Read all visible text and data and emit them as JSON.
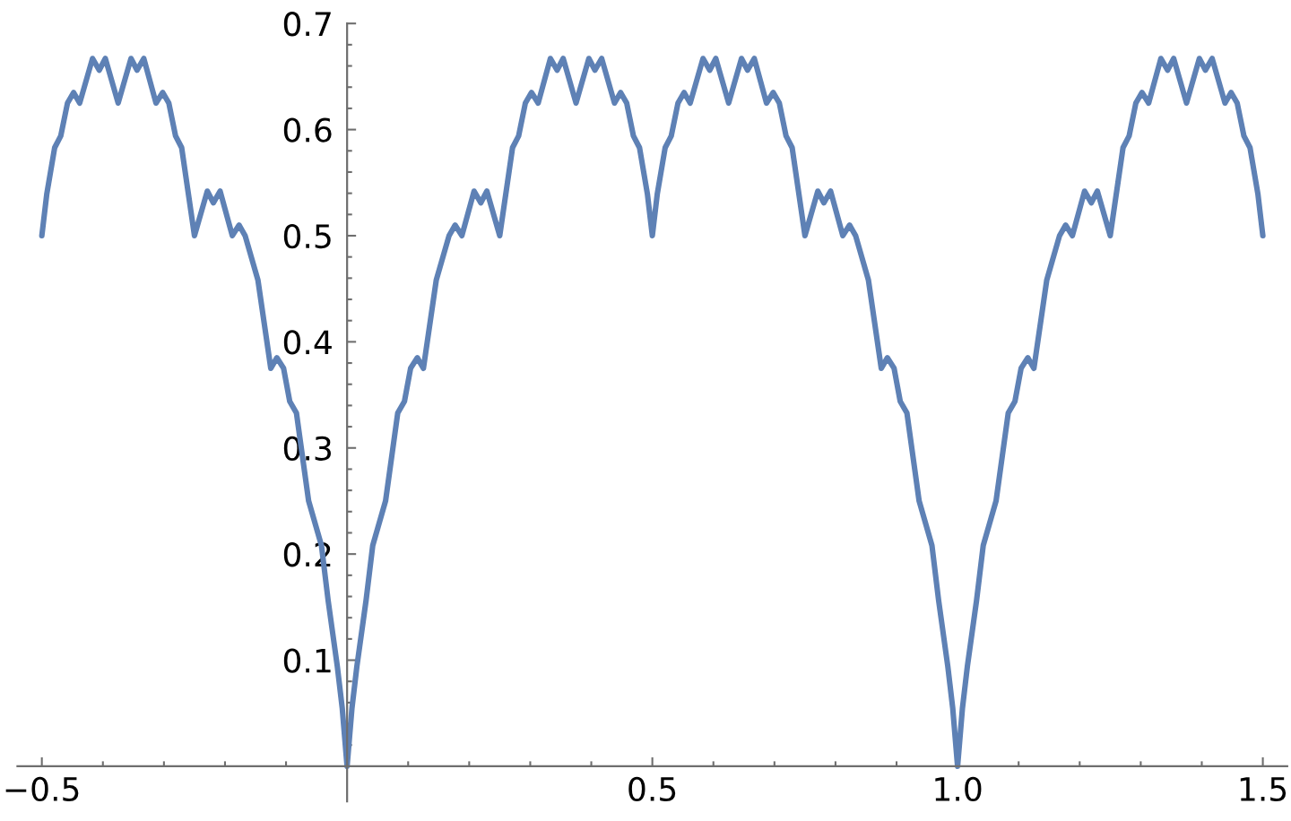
{
  "chart_data": {
    "type": "line",
    "x": [
      -0.5,
      -0.492,
      -0.479,
      -0.469,
      -0.458,
      -0.448,
      -0.438,
      -0.417,
      -0.406,
      -0.396,
      -0.375,
      -0.354,
      -0.344,
      -0.333,
      -0.313,
      -0.302,
      -0.292,
      -0.281,
      -0.271,
      -0.25,
      -0.229,
      -0.219,
      -0.208,
      -0.188,
      -0.177,
      -0.167,
      -0.146,
      -0.125,
      -0.115,
      -0.104,
      -0.094,
      -0.083,
      -0.063,
      -0.042,
      -0.031,
      -0.016,
      -0.008,
      0,
      0.008,
      0.016,
      0.031,
      0.042,
      0.063,
      0.083,
      0.094,
      0.104,
      0.115,
      0.125,
      0.146,
      0.167,
      0.177,
      0.188,
      0.208,
      0.219,
      0.229,
      0.25,
      0.271,
      0.281,
      0.292,
      0.302,
      0.313,
      0.333,
      0.344,
      0.354,
      0.375,
      0.396,
      0.406,
      0.417,
      0.438,
      0.448,
      0.458,
      0.469,
      0.479,
      0.492,
      0.5,
      0.508,
      0.521,
      0.531,
      0.542,
      0.552,
      0.562,
      0.583,
      0.594,
      0.604,
      0.625,
      0.646,
      0.656,
      0.667,
      0.687,
      0.698,
      0.708,
      0.719,
      0.729,
      0.75,
      0.771,
      0.781,
      0.792,
      0.812,
      0.823,
      0.833,
      0.854,
      0.875,
      0.885,
      0.896,
      0.906,
      0.917,
      0.937,
      0.958,
      0.969,
      0.984,
      0.992,
      1,
      1.008,
      1.016,
      1.031,
      1.042,
      1.063,
      1.083,
      1.094,
      1.104,
      1.115,
      1.125,
      1.146,
      1.167,
      1.177,
      1.188,
      1.208,
      1.219,
      1.229,
      1.25,
      1.271,
      1.281,
      1.292,
      1.302,
      1.313,
      1.333,
      1.344,
      1.354,
      1.375,
      1.396,
      1.406,
      1.417,
      1.438,
      1.448,
      1.458,
      1.469,
      1.479,
      1.492,
      1.5
    ],
    "series": [
      {
        "color": "#5e81b5",
        "values": [
          0.5,
          0.539,
          0.583,
          0.594,
          0.625,
          0.635,
          0.625,
          0.667,
          0.656,
          0.667,
          0.625,
          0.667,
          0.656,
          0.667,
          0.625,
          0.635,
          0.625,
          0.594,
          0.583,
          0.5,
          0.542,
          0.531,
          0.542,
          0.5,
          0.51,
          0.5,
          0.458,
          0.375,
          0.385,
          0.375,
          0.344,
          0.333,
          0.25,
          0.208,
          0.156,
          0.094,
          0.055,
          0,
          0.055,
          0.094,
          0.156,
          0.208,
          0.25,
          0.333,
          0.344,
          0.375,
          0.385,
          0.375,
          0.458,
          0.5,
          0.51,
          0.5,
          0.542,
          0.531,
          0.542,
          0.5,
          0.583,
          0.594,
          0.625,
          0.635,
          0.625,
          0.667,
          0.656,
          0.667,
          0.625,
          0.667,
          0.656,
          0.667,
          0.625,
          0.635,
          0.625,
          0.594,
          0.583,
          0.539,
          0.5,
          0.539,
          0.583,
          0.594,
          0.625,
          0.635,
          0.625,
          0.667,
          0.656,
          0.667,
          0.625,
          0.667,
          0.656,
          0.667,
          0.625,
          0.635,
          0.625,
          0.594,
          0.583,
          0.5,
          0.542,
          0.531,
          0.542,
          0.5,
          0.51,
          0.5,
          0.458,
          0.375,
          0.385,
          0.375,
          0.344,
          0.333,
          0.25,
          0.208,
          0.156,
          0.094,
          0.055,
          0,
          0.055,
          0.094,
          0.156,
          0.208,
          0.25,
          0.333,
          0.344,
          0.375,
          0.385,
          0.375,
          0.458,
          0.5,
          0.51,
          0.5,
          0.542,
          0.531,
          0.542,
          0.5,
          0.583,
          0.594,
          0.625,
          0.635,
          0.625,
          0.667,
          0.656,
          0.667,
          0.625,
          0.667,
          0.656,
          0.667,
          0.625,
          0.635,
          0.625,
          0.594,
          0.583,
          0.539,
          0.5
        ]
      }
    ],
    "line_style": "solid",
    "xlim": [
      -0.54,
      1.54
    ],
    "ylim": [
      -0.033,
      0.7
    ],
    "xticks": [
      {
        "value": -0.5,
        "label": "−0.5"
      },
      {
        "value": -0.4,
        "label": null
      },
      {
        "value": -0.3,
        "label": null
      },
      {
        "value": -0.2,
        "label": null
      },
      {
        "value": -0.1,
        "label": null
      },
      {
        "value": 0.1,
        "label": null
      },
      {
        "value": 0.2,
        "label": null
      },
      {
        "value": 0.3,
        "label": null
      },
      {
        "value": 0.4,
        "label": null
      },
      0.5,
      {
        "value": 0.6,
        "label": null
      },
      {
        "value": 0.7,
        "label": null
      },
      {
        "value": 0.8,
        "label": null
      },
      {
        "value": 0.9,
        "label": null
      },
      {
        "value": 1,
        "label": "1.0"
      },
      {
        "value": 1.1,
        "label": null
      },
      {
        "value": 1.2,
        "label": null
      },
      {
        "value": 1.3,
        "label": null
      },
      {
        "value": 1.4,
        "label": null
      },
      1.5
    ],
    "yticks": [
      {
        "value": 0.02,
        "label": null
      },
      {
        "value": 0.04,
        "label": null
      },
      {
        "value": 0.06,
        "label": null
      },
      {
        "value": 0.08,
        "label": null
      },
      0.1,
      {
        "value": 0.12,
        "label": null
      },
      {
        "value": 0.14,
        "label": null
      },
      {
        "value": 0.16,
        "label": null
      },
      {
        "value": 0.18,
        "label": null
      },
      0.2,
      {
        "value": 0.22,
        "label": null
      },
      {
        "value": 0.24,
        "label": null
      },
      {
        "value": 0.26,
        "label": null
      },
      {
        "value": 0.28,
        "label": null
      },
      0.3,
      {
        "value": 0.32,
        "label": null
      },
      {
        "value": 0.34,
        "label": null
      },
      {
        "value": 0.36,
        "label": null
      },
      {
        "value": 0.38,
        "label": null
      },
      0.4,
      {
        "value": 0.42,
        "label": null
      },
      {
        "value": 0.44,
        "label": null
      },
      {
        "value": 0.46,
        "label": null
      },
      {
        "value": 0.48,
        "label": null
      },
      0.5,
      {
        "value": 0.52,
        "label": null
      },
      {
        "value": 0.54,
        "label": null
      },
      {
        "value": 0.56,
        "label": null
      },
      {
        "value": 0.58,
        "label": null
      },
      0.6,
      {
        "value": 0.62,
        "label": null
      },
      {
        "value": 0.64,
        "label": null
      },
      {
        "value": 0.66,
        "label": null
      },
      {
        "value": 0.68,
        "label": null
      },
      0.7
    ]
  }
}
